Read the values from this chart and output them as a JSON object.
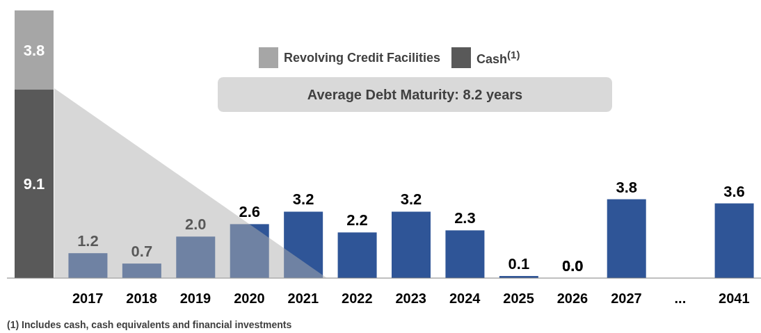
{
  "chart_data": {
    "type": "bar",
    "stacked": true,
    "legend": "top",
    "categories": [
      null,
      "2017",
      "2018",
      "2019",
      "2020",
      "2021",
      "2022",
      "2023",
      "2024",
      "2025",
      "2026",
      "2027",
      "...",
      "2041"
    ],
    "series": [
      {
        "name": "Cash$^{(1)}$",
        "color": "#595959",
        "values": [
          9.1,
          null,
          null,
          null,
          null,
          null,
          null,
          null,
          null,
          null,
          null,
          null,
          null,
          null
        ],
        "value_labels": [
          "9.1",
          null,
          null,
          null,
          null,
          null,
          null,
          null,
          null,
          null,
          null,
          null,
          null,
          null
        ]
      },
      {
        "name": "Revolving Credit Facilities",
        "color": "#a6a6a6",
        "values": [
          3.8,
          null,
          null,
          null,
          null,
          null,
          null,
          null,
          null,
          null,
          null,
          null,
          null,
          null
        ],
        "value_labels": [
          "3.8",
          null,
          null,
          null,
          null,
          null,
          null,
          null,
          null,
          null,
          null,
          null,
          null,
          null
        ]
      },
      {
        "color": "#2f5597",
        "values": [
          null,
          1.2,
          0.7,
          2.0,
          2.6,
          3.2,
          2.2,
          3.2,
          2.3,
          0.1,
          0.0,
          3.8,
          null,
          3.6
        ],
        "value_labels": [
          null,
          "1.2",
          "0.7",
          "2.0",
          "2.6",
          "3.2",
          "2.2",
          "3.2",
          "2.3",
          "0.1",
          "0.0",
          "3.8",
          null,
          "3.6"
        ]
      }
    ],
    "annotations": [
      "Average Debt Maturity: 8.2 years",
      "(1) Includes cash, cash equivalents and financial investments"
    ]
  }
}
